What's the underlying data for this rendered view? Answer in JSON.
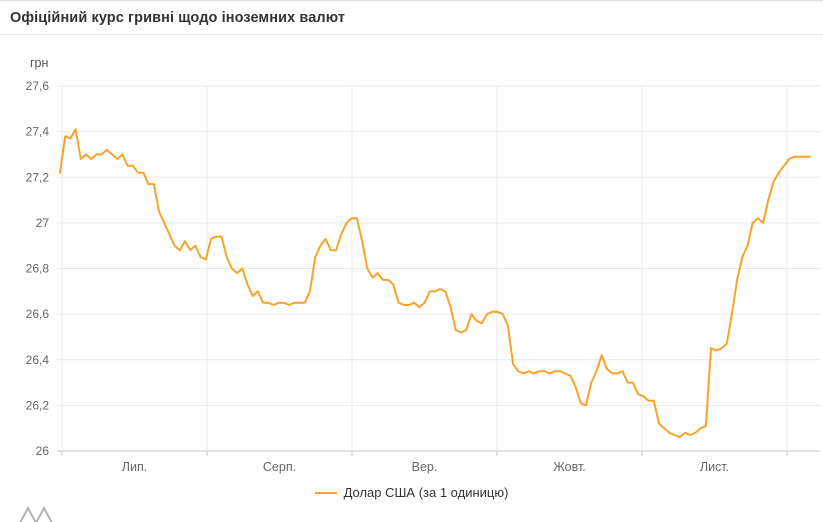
{
  "header": {
    "title": "Офіційний курс гривні щодо іноземних валют"
  },
  "legend": {
    "label": "Долар США (за 1 одиницю)"
  },
  "chart_data": {
    "type": "line",
    "title": "Офіційний курс гривні щодо іноземних валют",
    "ylabel": "грн",
    "xlabel": "",
    "ylim": [
      26,
      27.6
    ],
    "yticks": [
      26,
      26.2,
      26.4,
      26.6,
      26.8,
      27,
      27.2,
      27.4,
      27.6
    ],
    "ytick_labels": [
      "26",
      "26,2",
      "26,4",
      "26,6",
      "26,8",
      "27",
      "27,2",
      "27,4",
      "27,6"
    ],
    "xtick_labels": [
      "Лип.",
      "Серп.",
      "Вер.",
      "Жовт.",
      "Лист."
    ],
    "grid": true,
    "legend_position": "bottom",
    "series": [
      {
        "name": "Долар США (за 1 одиницю)",
        "color": "#f7a42a",
        "values": [
          27.22,
          27.38,
          27.37,
          27.41,
          27.28,
          27.3,
          27.28,
          27.3,
          27.3,
          27.32,
          27.3,
          27.28,
          27.3,
          27.25,
          27.25,
          27.22,
          27.22,
          27.17,
          27.17,
          27.05,
          27.0,
          26.95,
          26.9,
          26.88,
          26.92,
          26.88,
          26.9,
          26.85,
          26.84,
          26.93,
          26.94,
          26.94,
          26.85,
          26.8,
          26.78,
          26.8,
          26.73,
          26.68,
          26.7,
          26.65,
          26.65,
          26.64,
          26.65,
          26.65,
          26.64,
          26.65,
          26.65,
          26.65,
          26.7,
          26.85,
          26.9,
          26.93,
          26.88,
          26.88,
          26.95,
          27.0,
          27.02,
          27.02,
          26.92,
          26.8,
          26.76,
          26.78,
          26.75,
          26.75,
          26.73,
          26.65,
          26.64,
          26.64,
          26.65,
          26.63,
          26.65,
          26.7,
          26.7,
          26.71,
          26.7,
          26.63,
          26.53,
          26.52,
          26.53,
          26.6,
          26.57,
          26.56,
          26.6,
          26.61,
          26.61,
          26.6,
          26.55,
          26.38,
          26.35,
          26.34,
          26.35,
          26.34,
          26.35,
          26.35,
          26.34,
          26.35,
          26.35,
          26.34,
          26.33,
          26.28,
          26.21,
          26.2,
          26.3,
          26.35,
          26.42,
          26.36,
          26.34,
          26.34,
          26.35,
          26.3,
          26.3,
          26.25,
          26.24,
          26.22,
          26.22,
          26.12,
          26.1,
          26.08,
          26.07,
          26.06,
          26.08,
          26.07,
          26.08,
          26.1,
          26.11,
          26.45,
          26.44,
          26.45,
          26.47,
          26.6,
          26.75,
          26.85,
          26.9,
          27.0,
          27.02,
          27.0,
          27.1,
          27.18,
          27.22,
          27.25,
          27.28,
          27.29,
          27.29,
          27.29,
          27.29
        ]
      }
    ]
  }
}
